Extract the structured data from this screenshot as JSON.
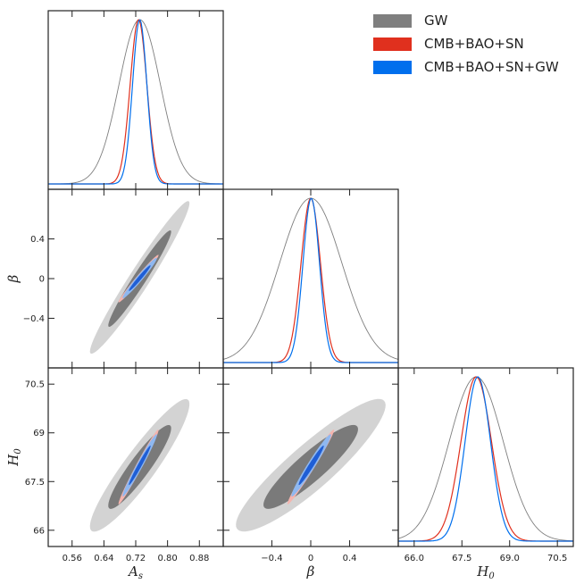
{
  "colors": {
    "GW": "#7f7f7f",
    "CMB+BAO+SN": "#e0301e",
    "CMB+BAO+SN+GW": "#006fed",
    "gw_outer": "#d3d3d3",
    "gw_inner": "#7a7a7a",
    "cbs_outer": "#f5b4ae",
    "cbs_inner": "#e0301e",
    "cbsgw_outer": "#8fb8f0",
    "cbsgw_inner": "#1f5ed6"
  },
  "chart_data": {
    "type": "triangle",
    "parameters": [
      {
        "name": "A_s",
        "label_main": "A",
        "label_sub": "s",
        "range": [
          0.5,
          0.94
        ],
        "ticks": [
          0.56,
          0.64,
          0.72,
          0.8,
          0.88
        ],
        "tick_labels": [
          "0.56",
          "0.64",
          "0.72",
          "0.80",
          "0.88"
        ]
      },
      {
        "name": "beta",
        "label_main": "β",
        "label_sub": "",
        "range": [
          -0.9,
          0.9
        ],
        "ticks": [
          -0.4,
          0,
          0.4
        ],
        "tick_labels": [
          "−0.4",
          "0",
          "0.4"
        ]
      },
      {
        "name": "H_0",
        "label_main": "H",
        "label_sub": "0",
        "range": [
          65.5,
          71.0
        ],
        "ticks": [
          66.0,
          67.5,
          69.0,
          70.5
        ],
        "tick_labels": [
          "66.0",
          "67.5",
          "69.0",
          "70.5"
        ],
        "y_tick_labels": [
          "66",
          "67.5",
          "69",
          "70.5"
        ]
      }
    ],
    "series": [
      {
        "name": "GW",
        "color_key": "GW",
        "mean": [
          0.73,
          0.0,
          67.95
        ],
        "sigma": [
          0.052,
          0.32,
          0.85
        ],
        "corr": {
          "0-1": 0.97,
          "0-2": 0.92,
          "1-2": 0.9
        }
      },
      {
        "name": "CMB+BAO+SN",
        "color_key": "CMB+BAO+SN",
        "mean": [
          0.727,
          0.0,
          67.95
        ],
        "sigma": [
          0.021,
          0.1,
          0.48
        ],
        "corr": {
          "0-1": 0.985,
          "0-2": 0.985,
          "1-2": 0.985
        }
      },
      {
        "name": "CMB+BAO+SN+GW",
        "color_key": "CMB+BAO+SN+GW",
        "mean": [
          0.73,
          0.005,
          68.0
        ],
        "sigma": [
          0.018,
          0.085,
          0.4
        ],
        "corr": {
          "0-1": 0.975,
          "0-2": 0.98,
          "1-2": 0.975
        }
      }
    ],
    "legend": {
      "position": "top-right",
      "entries": [
        "GW",
        "CMB+BAO+SN",
        "CMB+BAO+SN+GW"
      ]
    }
  }
}
